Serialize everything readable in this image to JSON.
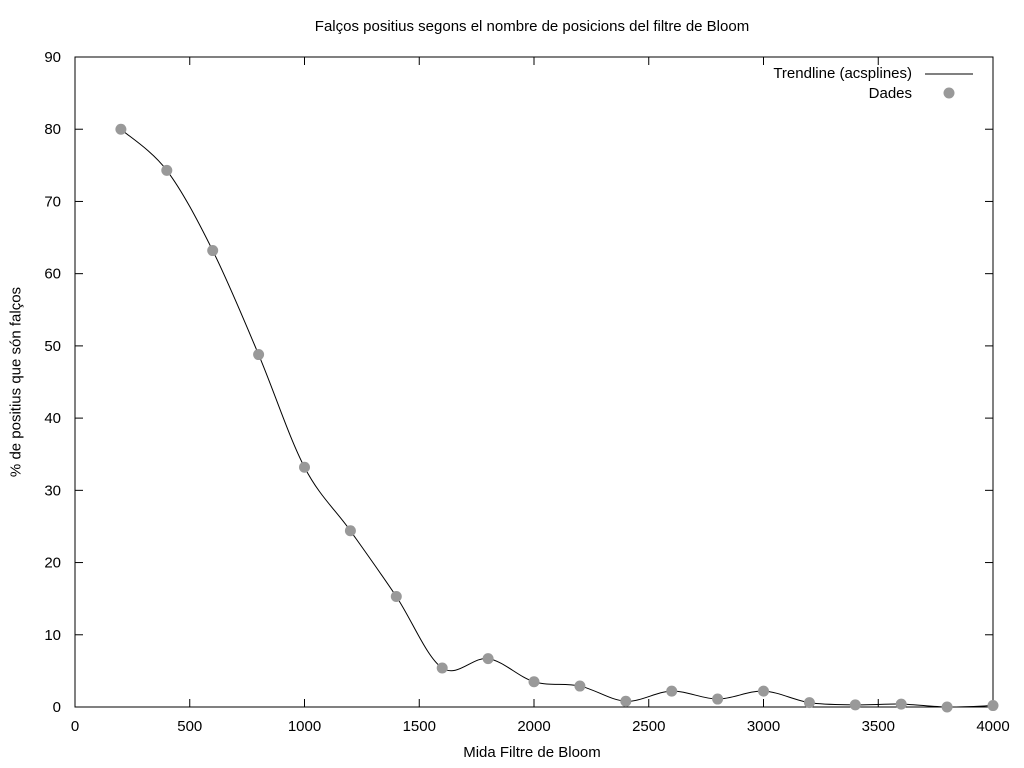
{
  "chart_data": {
    "type": "scatter",
    "title": "Falços positius segons el nombre de posicions del filtre de Bloom",
    "xlabel": "Mida Filtre de Bloom",
    "ylabel": "% de positius que són falços",
    "xlim": [
      0,
      4000
    ],
    "ylim": [
      0,
      90
    ],
    "xticks": [
      0,
      500,
      1000,
      1500,
      2000,
      2500,
      3000,
      3500,
      4000
    ],
    "yticks": [
      0,
      10,
      20,
      30,
      40,
      50,
      60,
      70,
      80,
      90
    ],
    "grid": false,
    "legend_position": "top-right",
    "series": [
      {
        "name": "Trendline (acsplines)",
        "style": "line",
        "color": "#000000",
        "x": [
          200,
          400,
          600,
          800,
          1000,
          1200,
          1400,
          1600,
          1800,
          2000,
          2200,
          2400,
          2600,
          2800,
          3000,
          3200,
          3400,
          3600,
          3800,
          4000
        ],
        "y": [
          80,
          74.3,
          63.2,
          48.8,
          33.2,
          24.4,
          15.3,
          5.4,
          6.7,
          3.5,
          2.9,
          0.8,
          2.2,
          1.1,
          2.2,
          0.6,
          0.3,
          0.4,
          0,
          0.2
        ]
      },
      {
        "name": "Dades",
        "style": "points",
        "color": "#999999",
        "x": [
          200,
          400,
          600,
          800,
          1000,
          1200,
          1400,
          1600,
          1800,
          2000,
          2200,
          2400,
          2600,
          2800,
          3000,
          3200,
          3400,
          3600,
          3800,
          4000
        ],
        "y": [
          80,
          74.3,
          63.2,
          48.8,
          33.2,
          24.4,
          15.3,
          5.4,
          6.7,
          3.5,
          2.9,
          0.8,
          2.2,
          1.1,
          2.2,
          0.6,
          0.3,
          0.4,
          0,
          0.2
        ]
      }
    ]
  }
}
